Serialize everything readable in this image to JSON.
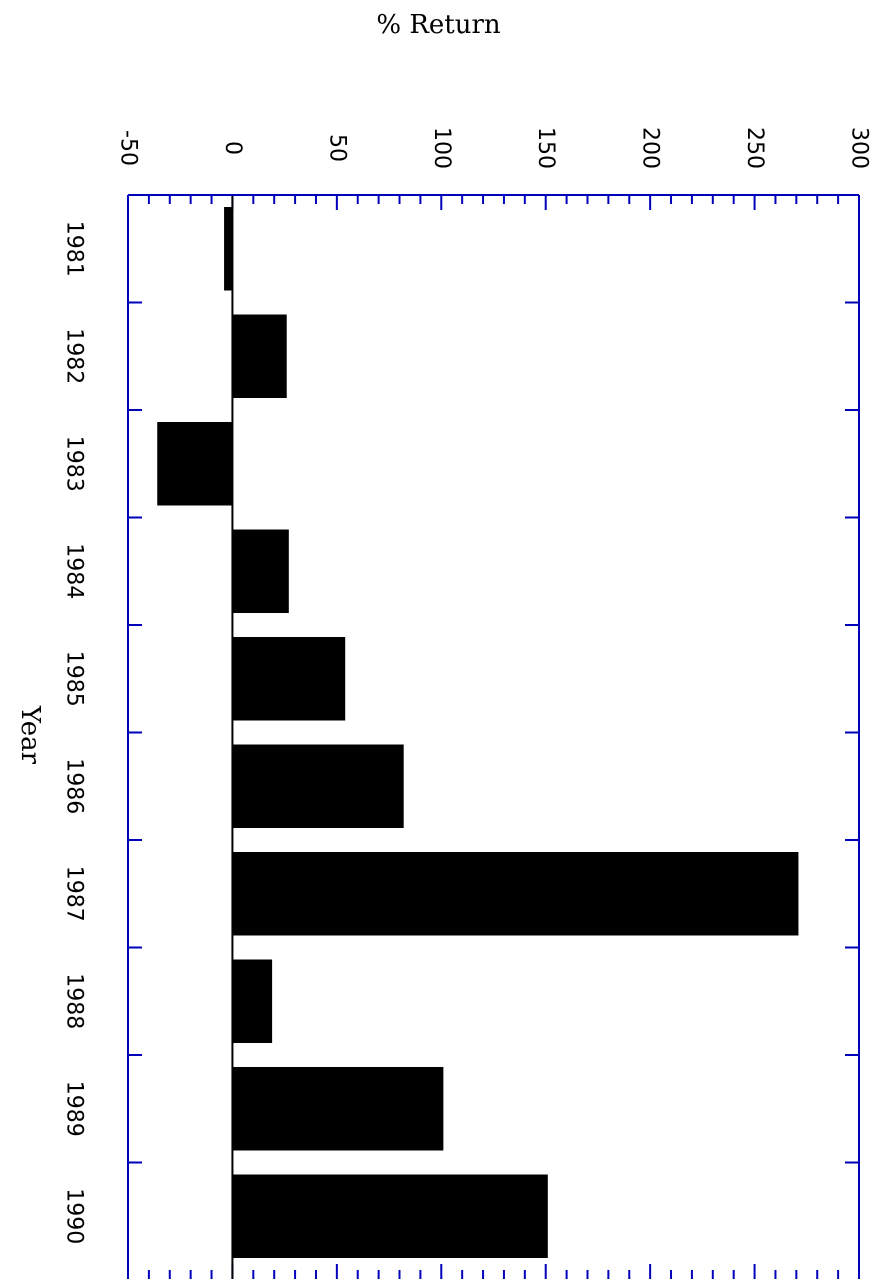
{
  "chart_data": {
    "type": "bar",
    "orientation": "rotated-90",
    "xlabel": "Year",
    "ylabel": "% Return",
    "categories": [
      "1981",
      "1982",
      "1983",
      "1984",
      "1985",
      "1986",
      "1987",
      "1988",
      "1989",
      "1990"
    ],
    "values": [
      -4,
      26,
      -36,
      27,
      54,
      82,
      271,
      19,
      101,
      151
    ],
    "ylim": [
      -50,
      300
    ],
    "yticks": [
      "-50",
      "0",
      "50",
      "100",
      "150",
      "200",
      "250",
      "300"
    ],
    "bar_color": "#000000",
    "axis_color": "#0000bb",
    "grid": false,
    "legend": "none"
  }
}
